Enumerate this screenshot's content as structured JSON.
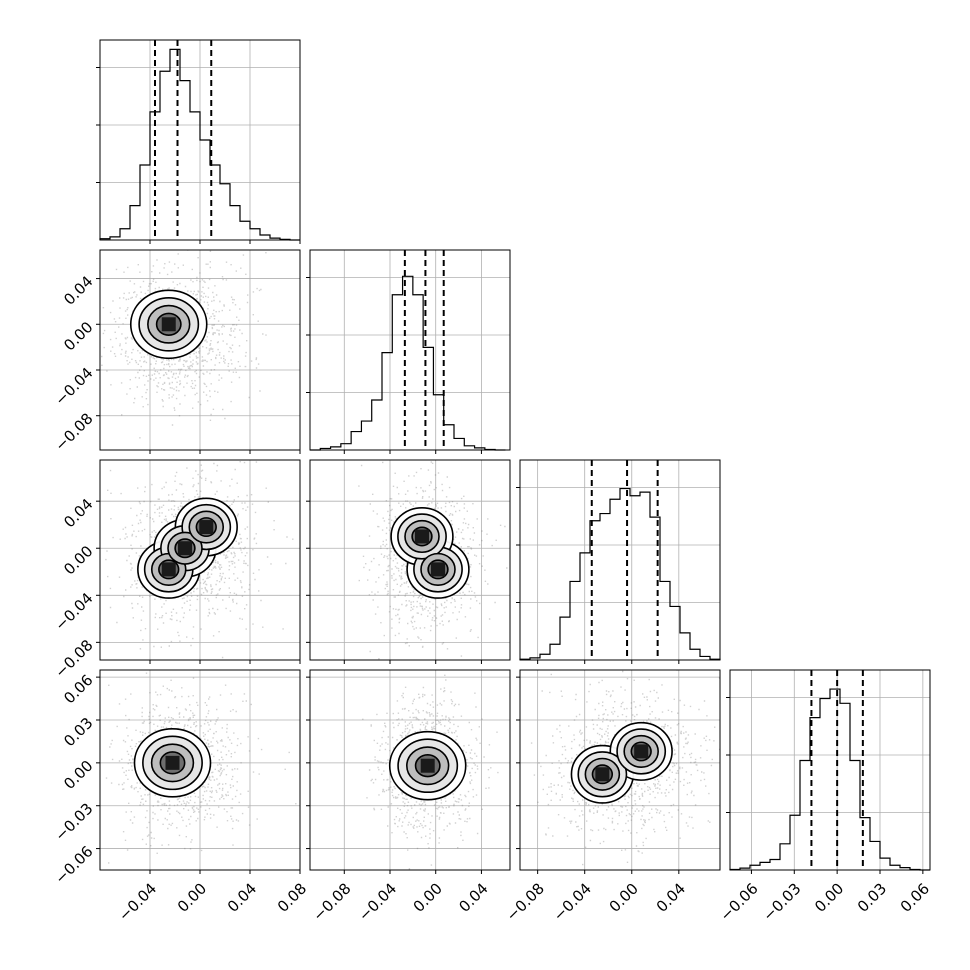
{
  "chart_data": [
    {
      "type": "corner",
      "parameters": 4,
      "axis_ticks": [
        {
          "param": 0,
          "ticks": [
            -0.04,
            0.0,
            0.04,
            0.08
          ],
          "labels": [
            "−0.04",
            "0.00",
            "0.04",
            "0.08"
          ],
          "range": [
            -0.08,
            0.08
          ]
        },
        {
          "param": 1,
          "ticks": [
            -0.08,
            -0.04,
            0.0,
            0.04
          ],
          "labels": [
            "−0.08",
            "−0.04",
            "0.00",
            "0.04"
          ],
          "range": [
            -0.11,
            0.065
          ]
        },
        {
          "param": 2,
          "ticks": [
            -0.08,
            -0.04,
            0.0,
            0.04
          ],
          "labels": [
            "−0.08",
            "−0.04",
            "0.00",
            "0.04"
          ],
          "range": [
            -0.095,
            0.075
          ]
        },
        {
          "param": 3,
          "ticks": [
            -0.06,
            -0.03,
            0.0,
            0.03,
            0.06
          ],
          "labels": [
            "−0.06",
            "−0.03",
            "0.00",
            "0.03",
            "0.06"
          ],
          "range": [
            -0.075,
            0.065
          ]
        }
      ],
      "grid": true
    },
    {
      "type": "histogram",
      "param": 0,
      "bins": [
        -0.08,
        -0.072,
        -0.064,
        -0.056,
        -0.048,
        -0.04,
        -0.032,
        -0.024,
        -0.016,
        -0.008,
        0.0,
        0.008,
        0.016,
        0.024,
        0.032,
        0.04,
        0.048,
        0.056,
        0.064,
        0.072,
        0.08
      ],
      "counts": [
        2,
        5,
        18,
        55,
        120,
        205,
        270,
        305,
        255,
        205,
        160,
        120,
        90,
        55,
        30,
        18,
        8,
        3,
        1,
        0
      ],
      "ylim": [
        0,
        320
      ],
      "quantiles": [
        -0.036,
        -0.018,
        0.009
      ]
    },
    {
      "type": "histogram",
      "param": 1,
      "bins": [
        -0.11,
        -0.101,
        -0.092,
        -0.083,
        -0.074,
        -0.065,
        -0.056,
        -0.047,
        -0.038,
        -0.029,
        -0.02,
        -0.011,
        -0.002,
        0.007,
        0.016,
        0.025,
        0.034,
        0.043,
        0.052,
        0.061
      ],
      "counts": [
        0,
        3,
        6,
        12,
        35,
        55,
        95,
        185,
        295,
        330,
        295,
        195,
        105,
        48,
        22,
        8,
        4,
        1,
        0
      ],
      "ylim": [
        0,
        380
      ],
      "quantiles": [
        -0.027,
        -0.009,
        0.007
      ]
    },
    {
      "type": "histogram",
      "param": 2,
      "bins": [
        -0.095,
        -0.0865,
        -0.078,
        -0.0695,
        -0.061,
        -0.0525,
        -0.044,
        -0.0355,
        -0.027,
        -0.0185,
        -0.01,
        -0.0015,
        0.007,
        0.0155,
        0.024,
        0.0325,
        0.041,
        0.0495,
        0.058,
        0.0665,
        0.075
      ],
      "counts": [
        1,
        3,
        8,
        22,
        60,
        110,
        150,
        195,
        205,
        225,
        240,
        230,
        235,
        200,
        110,
        75,
        38,
        15,
        5,
        1
      ],
      "ylim": [
        0,
        280
      ],
      "quantiles": [
        -0.034,
        -0.004,
        0.022
      ]
    },
    {
      "type": "histogram",
      "param": 3,
      "bins": [
        -0.075,
        -0.068,
        -0.061,
        -0.054,
        -0.047,
        -0.04,
        -0.033,
        -0.026,
        -0.019,
        -0.012,
        -0.005,
        0.002,
        0.009,
        0.016,
        0.023,
        0.03,
        0.037,
        0.044,
        0.051,
        0.058,
        0.065
      ],
      "counts": [
        1,
        4,
        10,
        16,
        22,
        55,
        115,
        230,
        320,
        360,
        380,
        350,
        230,
        110,
        60,
        25,
        10,
        5,
        1,
        0
      ],
      "ylim": [
        0,
        420
      ],
      "quantiles": [
        -0.018,
        0.0,
        0.018
      ]
    },
    {
      "type": "heatmap",
      "params": [
        0,
        1
      ],
      "peaks": [
        [
          -0.025,
          0.0
        ]
      ],
      "scatter_extent": {
        "x": [
          -0.075,
          0.06
        ],
        "y": [
          -0.1,
          0.055
        ]
      },
      "contour_levels": 4
    },
    {
      "type": "heatmap",
      "params": [
        0,
        2
      ],
      "peaks": [
        [
          -0.025,
          -0.018
        ],
        [
          -0.012,
          0.0
        ],
        [
          0.005,
          0.018
        ]
      ],
      "scatter_extent": {
        "x": [
          -0.075,
          0.06
        ],
        "y": [
          -0.09,
          0.07
        ]
      },
      "contour_levels": 4
    },
    {
      "type": "heatmap",
      "params": [
        1,
        2
      ],
      "peaks": [
        [
          0.002,
          -0.018
        ],
        [
          -0.012,
          0.01
        ]
      ],
      "scatter_extent": {
        "x": [
          -0.07,
          0.04
        ],
        "y": [
          -0.09,
          0.07
        ]
      },
      "contour_levels": 4
    },
    {
      "type": "heatmap",
      "params": [
        0,
        3
      ],
      "peaks": [
        [
          -0.022,
          0.0
        ]
      ],
      "scatter_extent": {
        "x": [
          -0.075,
          0.06
        ],
        "y": [
          -0.065,
          0.06
        ]
      },
      "contour_levels": 4
    },
    {
      "type": "heatmap",
      "params": [
        1,
        3
      ],
      "peaks": [
        [
          -0.007,
          -0.002
        ]
      ],
      "scatter_extent": {
        "x": [
          -0.065,
          0.04
        ],
        "y": [
          -0.065,
          0.06
        ]
      },
      "contour_levels": 4
    },
    {
      "type": "heatmap",
      "params": [
        2,
        3
      ],
      "peaks": [
        [
          -0.025,
          -0.008
        ],
        [
          0.008,
          0.008
        ]
      ],
      "scatter_extent": {
        "x": [
          -0.085,
          0.075
        ],
        "y": [
          -0.065,
          0.06
        ]
      },
      "contour_levels": 4
    }
  ]
}
